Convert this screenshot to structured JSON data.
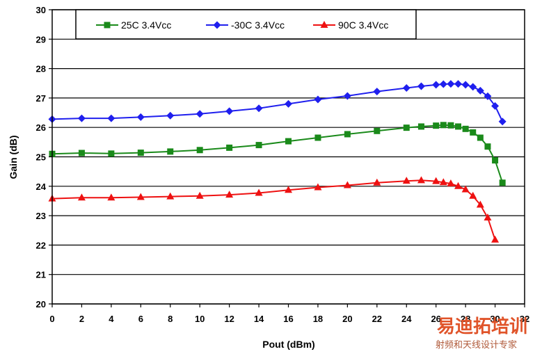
{
  "chart_data": {
    "type": "line",
    "xlabel": "Pout (dBm)",
    "ylabel": "Gain (dB)",
    "xlim": [
      0,
      32
    ],
    "ylim": [
      20,
      30
    ],
    "xticks": [
      "0",
      "2",
      "4",
      "6",
      "8",
      "10",
      "12",
      "14",
      "16",
      "18",
      "20",
      "22",
      "24",
      "26",
      "28",
      "30",
      "32"
    ],
    "yticks": [
      "20",
      "21",
      "22",
      "23",
      "24",
      "25",
      "26",
      "27",
      "28",
      "29",
      "30"
    ],
    "grid": "horizontal",
    "legend_position": "top",
    "series": [
      {
        "name": "25C 3.4Vcc",
        "color": "#1a8a1a",
        "marker": "square",
        "x": [
          0,
          2,
          4,
          6,
          8,
          10,
          12,
          14,
          16,
          18,
          20,
          22,
          24,
          25,
          26,
          26.5,
          27,
          27.5,
          28,
          28.5,
          29,
          29.5,
          30,
          30.5
        ],
        "y": [
          25.1,
          25.13,
          25.11,
          25.14,
          25.18,
          25.23,
          25.31,
          25.4,
          25.53,
          25.65,
          25.77,
          25.88,
          25.99,
          26.03,
          26.06,
          26.08,
          26.07,
          26.03,
          25.95,
          25.83,
          25.65,
          25.35,
          24.88,
          24.12
        ]
      },
      {
        "name": "-30C 3.4Vcc",
        "color": "#1f1fee",
        "marker": "diamond",
        "x": [
          0,
          2,
          4,
          6,
          8,
          10,
          12,
          14,
          16,
          18,
          20,
          22,
          24,
          25,
          26,
          26.5,
          27,
          27.5,
          28,
          28.5,
          29,
          29.5,
          30,
          30.5
        ],
        "y": [
          26.28,
          26.31,
          26.31,
          26.35,
          26.4,
          26.46,
          26.55,
          26.65,
          26.8,
          26.95,
          27.07,
          27.22,
          27.34,
          27.4,
          27.45,
          27.47,
          27.48,
          27.48,
          27.45,
          27.38,
          27.25,
          27.06,
          26.73,
          26.2
        ]
      },
      {
        "name": "90C 3.4Vcc",
        "color": "#ee1111",
        "marker": "triangle",
        "x": [
          0,
          2,
          4,
          6,
          8,
          10,
          12,
          14,
          16,
          18,
          20,
          22,
          24,
          25,
          26,
          26.5,
          27,
          27.5,
          28,
          28.5,
          29,
          29.5,
          30
        ],
        "y": [
          23.58,
          23.61,
          23.61,
          23.63,
          23.65,
          23.67,
          23.71,
          23.77,
          23.87,
          23.96,
          24.03,
          24.12,
          24.18,
          24.2,
          24.17,
          24.13,
          24.09,
          24.0,
          23.89,
          23.67,
          23.37,
          22.93,
          22.18
        ]
      }
    ]
  },
  "watermark": {
    "main": "易迪拓培训",
    "sub": "射频和天线设计专家"
  }
}
